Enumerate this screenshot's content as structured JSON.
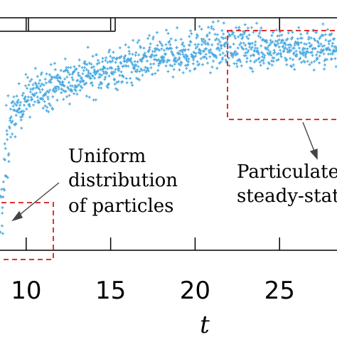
{
  "chart_data": {
    "type": "scatter",
    "xlabel": "t",
    "x_ticks": [
      10,
      15,
      20,
      25
    ],
    "xlim": [
      8.45,
      28.4
    ],
    "ylim": [
      0,
      1
    ],
    "grid": false,
    "marker_color": "#4aa9e0",
    "box_color": "#e03030",
    "series": [
      {
        "trend": {
          "description_points": [
            [
              8.4,
              0.05
            ],
            [
              9.0,
              0.55
            ],
            [
              10.0,
              0.66
            ],
            [
              12.0,
              0.72
            ],
            [
              15.0,
              0.78
            ],
            [
              18.0,
              0.83
            ],
            [
              20.0,
              0.86
            ],
            [
              22.0,
              0.88
            ],
            [
              25.0,
              0.87
            ],
            [
              28.4,
              0.87
            ]
          ]
        },
        "noise": 0.045,
        "n_points": 1100
      }
    ],
    "annotations": [
      {
        "lines": [
          "Uniform",
          "distribution",
          "of particles"
        ]
      },
      {
        "lines": [
          "Particulate p",
          "steady-state"
        ]
      }
    ]
  }
}
